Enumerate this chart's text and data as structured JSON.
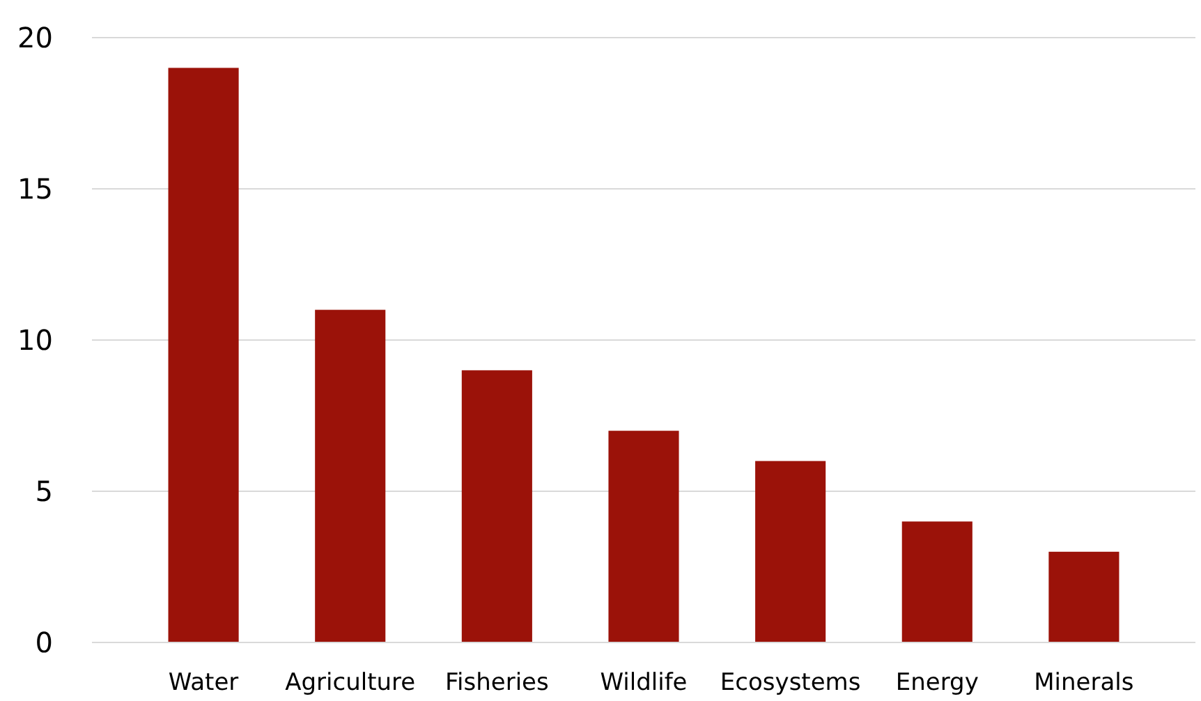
{
  "chart_data": {
    "type": "bar",
    "categories": [
      "Water",
      "Agriculture",
      "Fisheries",
      "Wildlife",
      "Ecosystems",
      "Energy",
      "Minerals"
    ],
    "values": [
      19,
      11,
      9,
      7,
      6,
      4,
      3
    ],
    "color": "#9b1209",
    "ylim": [
      0,
      20
    ],
    "yticks": [
      0,
      5,
      10,
      15,
      20
    ],
    "grid": "y"
  }
}
